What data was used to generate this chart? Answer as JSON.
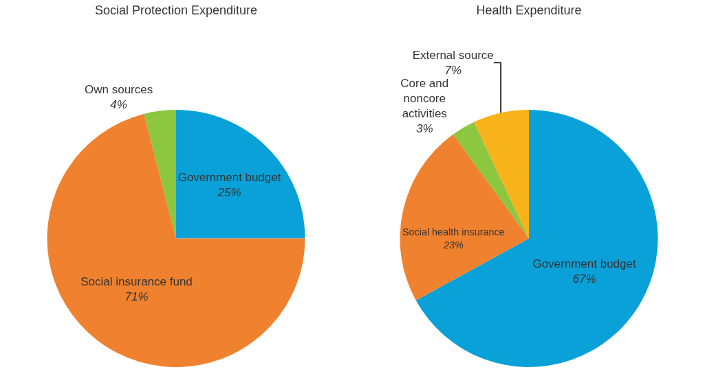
{
  "chart_data": [
    {
      "type": "pie",
      "title": "Social Protection Expenditure",
      "categories": [
        "Government budget",
        "Social insurance fund",
        "Own sources"
      ],
      "values": [
        25,
        71,
        4
      ],
      "value_labels": [
        "25%",
        "71%",
        "4%"
      ],
      "colors": [
        "#0aa0d8",
        "#f0812e",
        "#8dc63f"
      ]
    },
    {
      "type": "pie",
      "title": "Health Expenditure",
      "categories": [
        "Government budget",
        "Social health insurance",
        "Core and noncore activities",
        "External source"
      ],
      "values": [
        67,
        23,
        3,
        7
      ],
      "value_labels": [
        "67%",
        "23%",
        "3%",
        "7%"
      ],
      "colors": [
        "#0aa0d8",
        "#f0812e",
        "#8dc63f",
        "#f8b31b"
      ]
    }
  ]
}
